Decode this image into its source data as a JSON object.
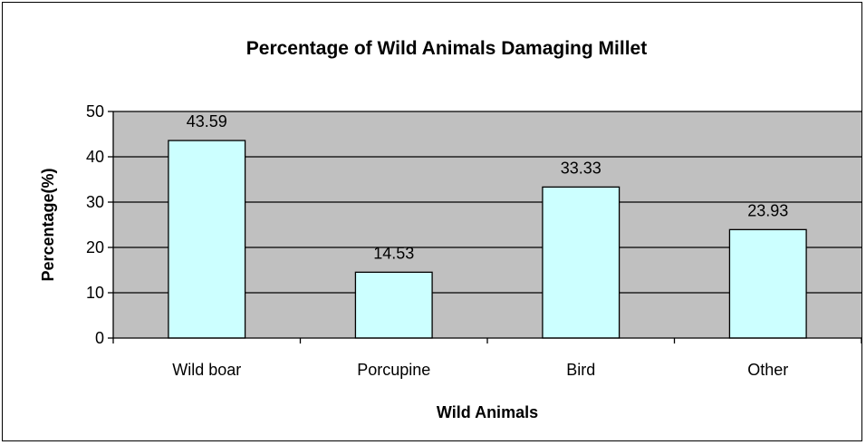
{
  "chart_data": {
    "type": "bar",
    "title": "Percentage of Wild Animals Damaging Millet",
    "xlabel": "Wild Animals",
    "ylabel": "Percentage(%)",
    "categories": [
      "Wild boar",
      "Porcupine",
      "Bird",
      "Other"
    ],
    "values": [
      43.59,
      14.53,
      33.33,
      23.93
    ],
    "data_labels": [
      "43.59",
      "14.53",
      "33.33",
      "23.93"
    ],
    "ylim": [
      0,
      50
    ],
    "yticks": [
      0,
      10,
      20,
      30,
      40,
      50
    ],
    "grid": true,
    "legend": false,
    "colors": {
      "bar_fill": "#ccffff",
      "plot_background": "#c0c0c0",
      "gridline": "#000000"
    }
  }
}
